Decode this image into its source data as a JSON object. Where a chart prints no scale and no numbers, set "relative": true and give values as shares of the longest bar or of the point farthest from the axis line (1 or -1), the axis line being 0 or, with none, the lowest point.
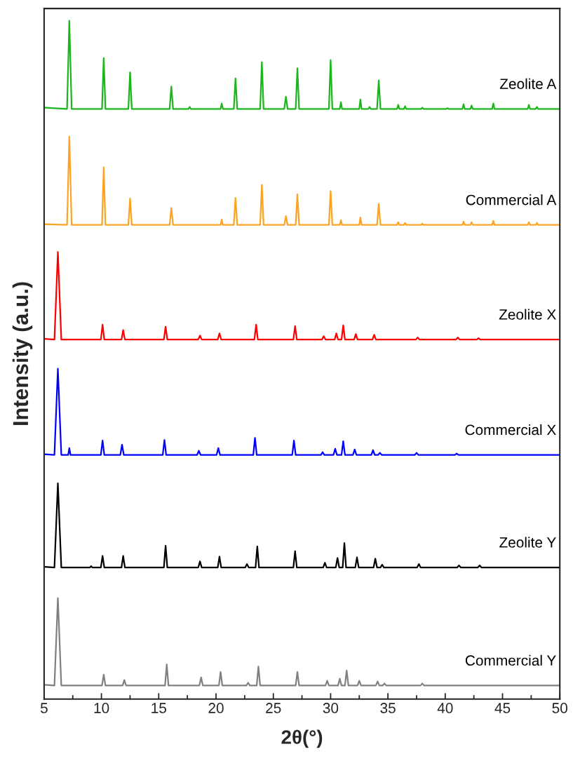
{
  "chart_data": {
    "type": "line",
    "relative": true,
    "xlabel": "2θ(°)",
    "ylabel": "Intensity (a.u.)",
    "xlim": [
      5,
      50
    ],
    "xticks": [
      5,
      10,
      15,
      20,
      25,
      30,
      35,
      40,
      45,
      50
    ],
    "tick_labels": "x",
    "grid": false,
    "legend": false,
    "marker": "none",
    "line_style": "solid",
    "series": [
      {
        "name": "Zeolite A",
        "color": "#1db51d",
        "x": [
          5,
          7.0,
          7.2,
          7.4,
          10.05,
          10.2,
          10.35,
          12.35,
          12.5,
          12.65,
          15.95,
          16.1,
          16.25,
          17.6,
          17.7,
          17.8,
          20.4,
          20.5,
          20.6,
          21.55,
          21.7,
          21.85,
          23.85,
          24.0,
          24.15,
          25.95,
          26.1,
          26.25,
          26.95,
          27.1,
          27.25,
          29.85,
          30.0,
          30.15,
          30.8,
          30.9,
          31.0,
          32.5,
          32.6,
          32.7,
          33.3,
          33.4,
          33.5,
          34.05,
          34.2,
          34.35,
          35.8,
          35.9,
          36.0,
          36.4,
          36.5,
          36.6,
          37.9,
          38.0,
          38.1,
          40.1,
          40.2,
          40.3,
          41.5,
          41.6,
          41.7,
          42.2,
          42.3,
          42.4,
          44.1,
          44.2,
          44.3,
          47.2,
          47.3,
          47.4,
          47.9,
          48.0,
          48.1,
          50
        ],
        "values": [
          0.872,
          0.87,
          1.0,
          0.87,
          0.87,
          0.945,
          0.87,
          0.87,
          0.924,
          0.87,
          0.87,
          0.903,
          0.87,
          0.87,
          0.873,
          0.87,
          0.87,
          0.878,
          0.87,
          0.87,
          0.915,
          0.87,
          0.87,
          0.939,
          0.87,
          0.87,
          0.888,
          0.87,
          0.87,
          0.93,
          0.87,
          0.87,
          0.942,
          0.87,
          0.87,
          0.88,
          0.87,
          0.87,
          0.884,
          0.87,
          0.87,
          0.873,
          0.87,
          0.87,
          0.912,
          0.87,
          0.87,
          0.876,
          0.87,
          0.87,
          0.874,
          0.87,
          0.87,
          0.872,
          0.87,
          0.87,
          0.871,
          0.87,
          0.87,
          0.877,
          0.87,
          0.87,
          0.875,
          0.87,
          0.87,
          0.878,
          0.87,
          0.87,
          0.876,
          0.87,
          0.87,
          0.873,
          0.87,
          0.87
        ]
      },
      {
        "name": "Commercial A",
        "color": "#fba424",
        "x": [
          5,
          7.0,
          7.2,
          7.4,
          10.05,
          10.2,
          10.35,
          12.35,
          12.5,
          12.65,
          15.95,
          16.1,
          16.25,
          20.4,
          20.5,
          20.6,
          21.55,
          21.7,
          21.85,
          23.85,
          24.0,
          24.15,
          25.95,
          26.1,
          26.25,
          26.95,
          27.1,
          27.25,
          29.85,
          30.0,
          30.15,
          30.8,
          30.9,
          31.0,
          32.5,
          32.6,
          32.7,
          34.05,
          34.2,
          34.35,
          35.8,
          35.9,
          36.0,
          36.4,
          36.5,
          36.6,
          37.9,
          38.0,
          38.1,
          41.5,
          41.6,
          41.7,
          42.2,
          42.3,
          42.4,
          44.1,
          44.2,
          44.3,
          47.2,
          47.3,
          47.4,
          47.9,
          48.0,
          48.1,
          50
        ],
        "values": [
          0.7,
          0.699,
          0.829,
          0.699,
          0.699,
          0.784,
          0.699,
          0.699,
          0.738,
          0.699,
          0.699,
          0.724,
          0.699,
          0.699,
          0.707,
          0.699,
          0.699,
          0.739,
          0.699,
          0.699,
          0.758,
          0.699,
          0.699,
          0.712,
          0.699,
          0.699,
          0.744,
          0.699,
          0.699,
          0.749,
          0.699,
          0.699,
          0.706,
          0.699,
          0.699,
          0.71,
          0.699,
          0.699,
          0.73,
          0.699,
          0.699,
          0.703,
          0.699,
          0.699,
          0.702,
          0.699,
          0.699,
          0.701,
          0.699,
          0.699,
          0.704,
          0.699,
          0.699,
          0.703,
          0.699,
          0.699,
          0.705,
          0.699,
          0.699,
          0.703,
          0.699,
          0.699,
          0.702,
          0.699,
          0.699
        ]
      },
      {
        "name": "Zeolite X",
        "color": "#ff0000",
        "x": [
          5,
          5.9,
          6.2,
          6.5,
          9.95,
          10.1,
          10.25,
          11.75,
          11.9,
          12.05,
          15.45,
          15.6,
          15.75,
          18.45,
          18.6,
          18.75,
          20.15,
          20.3,
          20.45,
          23.35,
          23.5,
          23.65,
          26.75,
          26.9,
          27.05,
          29.25,
          29.4,
          29.55,
          30.35,
          30.5,
          30.65,
          30.95,
          31.1,
          31.25,
          32.05,
          32.2,
          32.35,
          33.65,
          33.8,
          33.95,
          37.45,
          37.6,
          37.75,
          40.95,
          41.1,
          41.25,
          42.75,
          42.9,
          43.05,
          50
        ],
        "values": [
          0.531,
          0.53,
          0.659,
          0.53,
          0.53,
          0.552,
          0.53,
          0.53,
          0.544,
          0.53,
          0.53,
          0.549,
          0.53,
          0.53,
          0.536,
          0.53,
          0.53,
          0.539,
          0.53,
          0.53,
          0.552,
          0.53,
          0.53,
          0.55,
          0.53,
          0.53,
          0.535,
          0.53,
          0.53,
          0.539,
          0.53,
          0.53,
          0.551,
          0.53,
          0.53,
          0.538,
          0.53,
          0.53,
          0.537,
          0.53,
          0.53,
          0.533,
          0.53,
          0.53,
          0.533,
          0.53,
          0.53,
          0.532,
          0.53,
          0.53
        ]
      },
      {
        "name": "Commercial X",
        "color": "#0000ff",
        "x": [
          5,
          5.9,
          6.2,
          6.5,
          7.1,
          7.2,
          7.3,
          9.95,
          10.1,
          10.25,
          11.65,
          11.8,
          11.95,
          15.35,
          15.5,
          15.65,
          18.35,
          18.5,
          18.65,
          20.05,
          20.2,
          20.35,
          23.25,
          23.4,
          23.55,
          26.65,
          26.8,
          26.95,
          29.15,
          29.3,
          29.45,
          30.25,
          30.4,
          30.55,
          30.95,
          31.1,
          31.25,
          31.95,
          32.1,
          32.25,
          33.55,
          33.7,
          33.85,
          34.15,
          34.3,
          34.45,
          37.35,
          37.5,
          37.65,
          40.85,
          41.0,
          41.15,
          50
        ],
        "values": [
          0.361,
          0.36,
          0.487,
          0.36,
          0.36,
          0.37,
          0.36,
          0.36,
          0.381,
          0.36,
          0.36,
          0.375,
          0.36,
          0.36,
          0.382,
          0.36,
          0.36,
          0.366,
          0.36,
          0.36,
          0.37,
          0.36,
          0.36,
          0.385,
          0.36,
          0.36,
          0.381,
          0.36,
          0.36,
          0.364,
          0.36,
          0.36,
          0.369,
          0.36,
          0.36,
          0.38,
          0.36,
          0.36,
          0.368,
          0.36,
          0.36,
          0.367,
          0.36,
          0.36,
          0.363,
          0.36,
          0.36,
          0.363,
          0.36,
          0.36,
          0.362,
          0.36,
          0.36
        ]
      },
      {
        "name": "Zeolite Y",
        "color": "#000000",
        "x": [
          5,
          5.9,
          6.2,
          6.5,
          9.0,
          9.1,
          9.2,
          9.95,
          10.1,
          10.25,
          11.75,
          11.9,
          12.05,
          15.45,
          15.6,
          15.75,
          18.45,
          18.6,
          18.75,
          20.15,
          20.3,
          20.45,
          22.55,
          22.7,
          22.85,
          23.45,
          23.6,
          23.75,
          26.75,
          26.9,
          27.05,
          29.35,
          29.5,
          29.65,
          30.45,
          30.6,
          30.75,
          31.05,
          31.2,
          31.35,
          32.15,
          32.3,
          32.45,
          33.75,
          33.9,
          34.05,
          34.35,
          34.5,
          34.65,
          37.55,
          37.7,
          37.85,
          41.05,
          41.2,
          41.35,
          42.85,
          43.0,
          43.15,
          50
        ],
        "values": [
          0.195,
          0.194,
          0.318,
          0.194,
          0.194,
          0.196,
          0.194,
          0.194,
          0.211,
          0.194,
          0.194,
          0.211,
          0.194,
          0.194,
          0.226,
          0.194,
          0.194,
          0.203,
          0.194,
          0.194,
          0.21,
          0.194,
          0.194,
          0.199,
          0.194,
          0.194,
          0.225,
          0.194,
          0.194,
          0.218,
          0.194,
          0.194,
          0.201,
          0.194,
          0.194,
          0.208,
          0.194,
          0.194,
          0.23,
          0.194,
          0.194,
          0.209,
          0.194,
          0.194,
          0.207,
          0.194,
          0.194,
          0.198,
          0.194,
          0.194,
          0.199,
          0.194,
          0.194,
          0.197,
          0.194,
          0.194,
          0.197,
          0.194,
          0.194
        ]
      },
      {
        "name": "Commercial Y",
        "color": "#808080",
        "x": [
          5,
          5.9,
          6.2,
          6.5,
          10.05,
          10.2,
          10.35,
          11.85,
          12.0,
          12.15,
          15.55,
          15.7,
          15.85,
          18.55,
          18.7,
          18.85,
          20.25,
          20.4,
          20.55,
          22.65,
          22.8,
          22.95,
          23.55,
          23.7,
          23.85,
          26.95,
          27.1,
          27.25,
          29.55,
          29.7,
          29.85,
          30.65,
          30.8,
          30.95,
          31.25,
          31.4,
          31.55,
          32.35,
          32.5,
          32.65,
          33.95,
          34.1,
          34.25,
          34.55,
          34.7,
          34.85,
          37.85,
          38.0,
          38.15,
          50
        ],
        "values": [
          0.021,
          0.02,
          0.149,
          0.02,
          0.02,
          0.036,
          0.02,
          0.02,
          0.028,
          0.02,
          0.02,
          0.051,
          0.02,
          0.02,
          0.032,
          0.02,
          0.02,
          0.04,
          0.02,
          0.02,
          0.024,
          0.02,
          0.02,
          0.048,
          0.02,
          0.02,
          0.04,
          0.02,
          0.02,
          0.027,
          0.02,
          0.02,
          0.03,
          0.02,
          0.02,
          0.042,
          0.02,
          0.02,
          0.027,
          0.02,
          0.02,
          0.026,
          0.02,
          0.02,
          0.023,
          0.02,
          0.02,
          0.023,
          0.02,
          0.02
        ]
      }
    ]
  }
}
